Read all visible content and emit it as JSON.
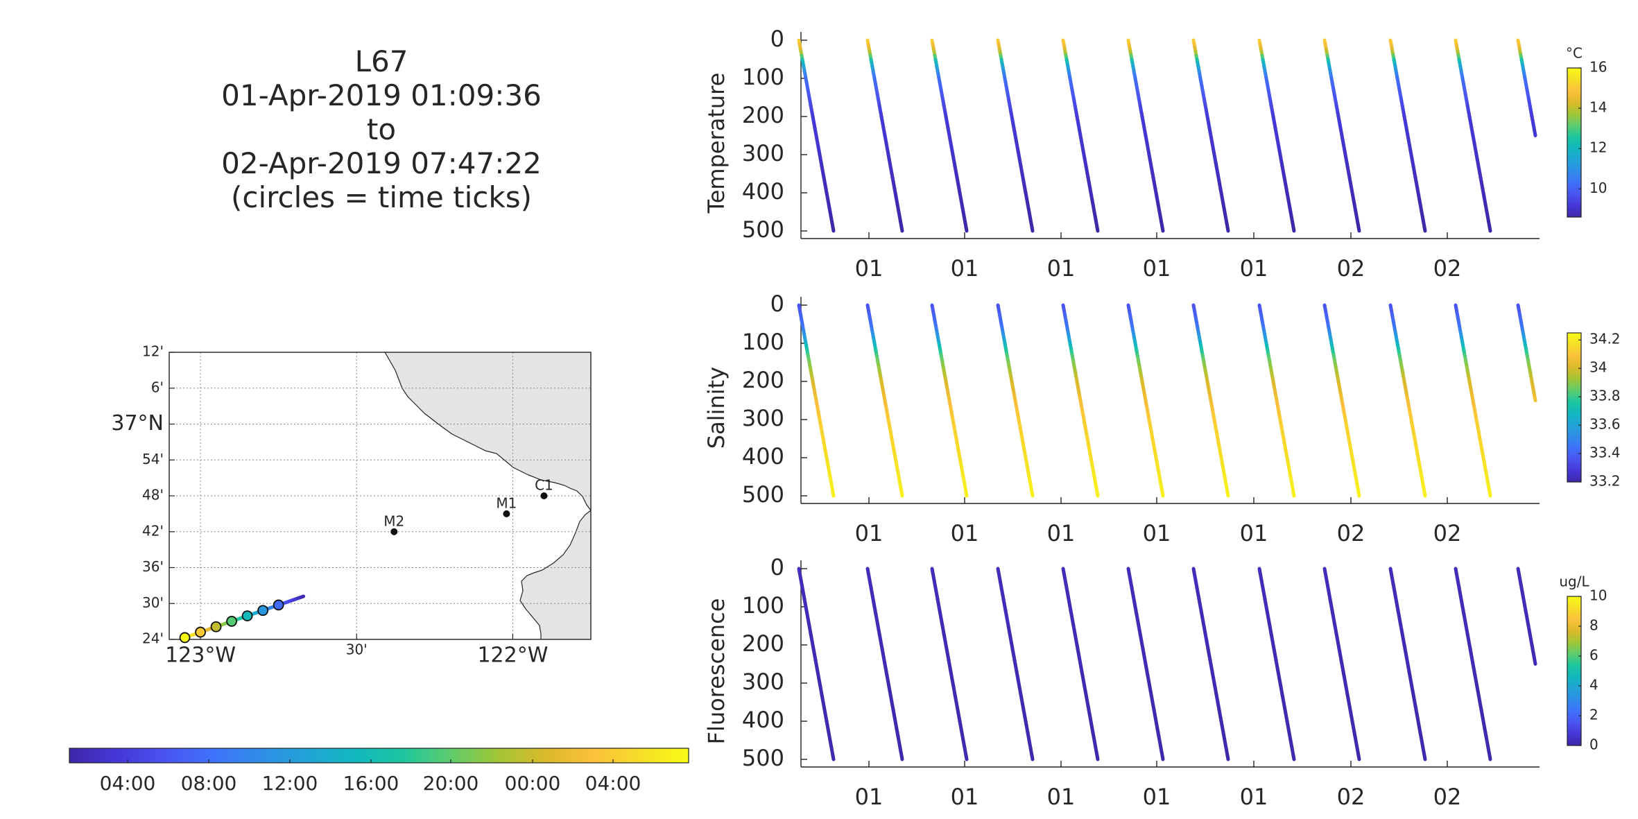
{
  "title": {
    "line1": "L67",
    "line2": "01-Apr-2019 01:09:36",
    "line3": "to",
    "line4": "02-Apr-2019 07:47:22",
    "line5": "(circles = time ticks)"
  },
  "colormap": [
    "#3e26a8",
    "#4538d7",
    "#4a54f0",
    "#3f72fb",
    "#2f8de7",
    "#21a4d6",
    "#11b8bf",
    "#1dc69e",
    "#5fcc6d",
    "#a2c636",
    "#dbb92a",
    "#fcc13c",
    "#f6de27",
    "#f9fb15"
  ],
  "chart_data": [
    {
      "type": "map",
      "ylabels": [
        "12'",
        "6'",
        "37°N",
        "54'",
        "48'",
        "42'",
        "36'",
        "30'",
        "24'"
      ],
      "yvalues": [
        37.2,
        37.1,
        37.0,
        36.9,
        36.8,
        36.7,
        36.6,
        36.5,
        36.4
      ],
      "xlabels": [
        "123°W",
        "30'",
        "122°W"
      ],
      "xvalues": [
        -123.0,
        -122.5,
        -122.0
      ],
      "xlim": [
        -123.1,
        -121.75
      ],
      "ylim": [
        36.4,
        37.2
      ],
      "grid": true,
      "stations": [
        {
          "name": "M2",
          "lon": -122.38,
          "lat": 36.7
        },
        {
          "name": "M1",
          "lon": -122.02,
          "lat": 36.75
        },
        {
          "name": "C1",
          "lon": -121.9,
          "lat": 36.8
        }
      ],
      "track": {
        "start": {
          "lon": -123.05,
          "lat": 36.405
        },
        "end": {
          "lon": -122.67,
          "lat": 36.52
        }
      }
    },
    {
      "type": "colorbar",
      "orientation": "horizontal",
      "ticklabels": [
        "04:00",
        "08:00",
        "12:00",
        "16:00",
        "20:00",
        "00:00",
        "04:00"
      ]
    },
    {
      "type": "scatter",
      "ylabel": "Temperature",
      "yticks": [
        0,
        100,
        200,
        300,
        400,
        500
      ],
      "ylim": [
        0,
        520
      ],
      "yreversed": true,
      "xticklabels": [
        "01",
        "01",
        "01",
        "01",
        "01",
        "02",
        "02"
      ],
      "colorbar": {
        "unit": "°C",
        "range": [
          8.6,
          16
        ],
        "ticks": [
          10,
          12,
          14,
          16
        ]
      },
      "cast_profile": {
        "depth": [
          0,
          30,
          60,
          100,
          200,
          500
        ],
        "value": [
          15.2,
          14.2,
          12.0,
          10.3,
          9.2,
          8.6
        ]
      }
    },
    {
      "type": "scatter",
      "ylabel": "Salinity",
      "yticks": [
        0,
        100,
        200,
        300,
        400,
        500
      ],
      "ylim": [
        0,
        520
      ],
      "yreversed": true,
      "xticklabels": [
        "01",
        "01",
        "01",
        "01",
        "01",
        "02",
        "02"
      ],
      "colorbar": {
        "unit": "",
        "range": [
          33.2,
          34.25
        ],
        "ticks": [
          33.2,
          33.4,
          33.6,
          33.8,
          34,
          34.2
        ]
      },
      "cast_profile": {
        "depth": [
          0,
          60,
          100,
          140,
          200,
          300,
          500
        ],
        "value": [
          33.35,
          33.45,
          33.65,
          33.85,
          34.0,
          34.12,
          34.22
        ]
      }
    },
    {
      "type": "scatter",
      "ylabel": "Fluorescence",
      "yticks": [
        0,
        100,
        200,
        300,
        400,
        500
      ],
      "ylim": [
        0,
        520
      ],
      "yreversed": true,
      "xticklabels": [
        "01",
        "01",
        "01",
        "01",
        "01",
        "02",
        "02"
      ],
      "colorbar": {
        "unit": "ug/L",
        "range": [
          0,
          10
        ],
        "ticks": [
          0,
          2,
          4,
          6,
          8,
          10
        ]
      },
      "cast_profile": {
        "depth": [
          0,
          500
        ],
        "value": [
          0.3,
          0.1
        ]
      }
    }
  ]
}
